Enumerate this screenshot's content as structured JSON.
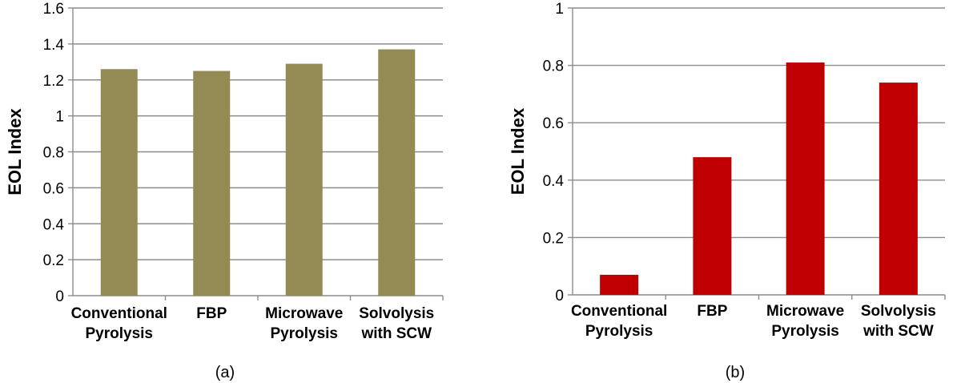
{
  "chart_data": [
    {
      "type": "bar",
      "caption": "(a)",
      "categories": [
        [
          "Conventional",
          "Pyrolysis"
        ],
        [
          "FBP"
        ],
        [
          "Microwave",
          "Pyrolysis"
        ],
        [
          "Solvolysis",
          "with SCW"
        ]
      ],
      "values": [
        1.26,
        1.25,
        1.29,
        1.37
      ],
      "ylabel": "EOL Index",
      "xlabel": "",
      "ylim": [
        0,
        1.6
      ],
      "yticks": [
        "0",
        "0.2",
        "0.4",
        "0.6",
        "0.8",
        "1",
        "1.2",
        "1.4",
        "1.6"
      ],
      "grid": true,
      "color": "#948A54"
    },
    {
      "type": "bar",
      "caption": "(b)",
      "categories": [
        [
          "Conventional",
          "Pyrolysis"
        ],
        [
          "FBP"
        ],
        [
          "Microwave",
          "Pyrolysis"
        ],
        [
          "Solvolysis",
          "with SCW"
        ]
      ],
      "values": [
        0.07,
        0.48,
        0.81,
        0.74
      ],
      "ylabel": "EOL Index",
      "xlabel": "",
      "ylim": [
        0,
        1
      ],
      "yticks": [
        "0",
        "0.2",
        "0.4",
        "0.6",
        "0.8",
        "1"
      ],
      "grid": true,
      "color": "#C00000"
    }
  ]
}
